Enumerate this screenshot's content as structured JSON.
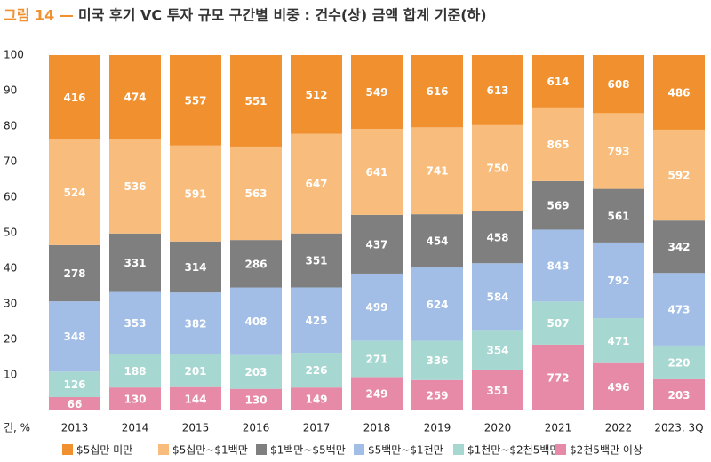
{
  "chart_data": {
    "type": "stacked100",
    "figure_label": "그림 14 —",
    "title": "미국 후기 VC 투자 규모 구간별 비중 : 건수(상) 금액 합계 기준(하)",
    "y_label": "건, %",
    "categories": [
      "2013",
      "2014",
      "2015",
      "2016",
      "2017",
      "2018",
      "2019",
      "2020",
      "2021",
      "2022",
      "2023. 3Q"
    ],
    "ylim": [
      0,
      100
    ],
    "yticks": [
      10,
      20,
      30,
      40,
      50,
      60,
      70,
      80,
      90,
      100
    ],
    "grid": false,
    "legend": "bottom",
    "series": [
      {
        "name": "$2천5백만 이상",
        "color": "#e68aa8",
        "values": [
          66,
          130,
          144,
          130,
          149,
          249,
          259,
          351,
          772,
          496,
          203
        ]
      },
      {
        "name": "$1천만~$2천5백만",
        "color": "#a7d7d1",
        "values": [
          126,
          188,
          201,
          203,
          226,
          271,
          336,
          354,
          507,
          471,
          220
        ]
      },
      {
        "name": "$5백만~$1천만",
        "color": "#a2bee6",
        "values": [
          348,
          353,
          382,
          408,
          425,
          499,
          624,
          584,
          843,
          792,
          473
        ]
      },
      {
        "name": "$1백만~$5백만",
        "color": "#7f7f7f",
        "values": [
          278,
          331,
          314,
          286,
          351,
          437,
          454,
          458,
          569,
          561,
          342
        ]
      },
      {
        "name": "$5십만~$1백만",
        "color": "#f8bd7c",
        "values": [
          524,
          536,
          591,
          563,
          647,
          641,
          741,
          750,
          865,
          793,
          592
        ]
      },
      {
        "name": "$5십만 미만",
        "color": "#f0902e",
        "values": [
          416,
          474,
          557,
          551,
          512,
          549,
          616,
          613,
          614,
          608,
          486
        ]
      }
    ]
  }
}
